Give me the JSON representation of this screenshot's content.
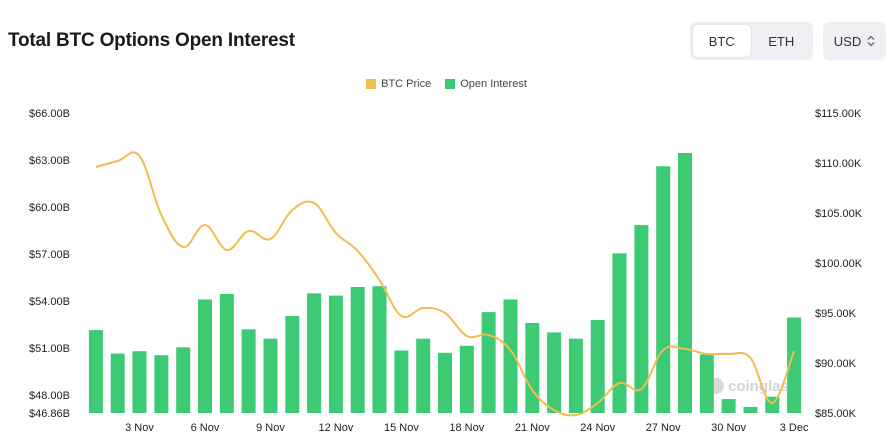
{
  "title": "Total BTC Options Open Interest",
  "asset_toggle": {
    "options": [
      "BTC",
      "ETH"
    ],
    "selected": "BTC"
  },
  "currency_select": {
    "value": "USD"
  },
  "watermark": "coinglass",
  "colors": {
    "btc_price": "#f0bd4f",
    "open_interest": "#3dca74"
  },
  "chart_data": {
    "type": "bar",
    "title": "Total BTC Options Open Interest",
    "legend": {
      "placement": "top-center",
      "entries": [
        "BTC Price",
        "Open Interest"
      ]
    },
    "grid": false,
    "x_ticks": [
      "3 Nov",
      "6 Nov",
      "9 Nov",
      "12 Nov",
      "15 Nov",
      "18 Nov",
      "21 Nov",
      "24 Nov",
      "27 Nov",
      "30 Nov",
      "3 Dec"
    ],
    "y_left": {
      "ticks": [
        "$46.86B",
        "$48.00B",
        "$51.00B",
        "$54.00B",
        "$57.00B",
        "$60.00B",
        "$63.00B",
        "$66.00B"
      ],
      "range": [
        46.86,
        66
      ]
    },
    "y_right": {
      "ticks": [
        "$85.00K",
        "$90.00K",
        "$95.00K",
        "$100.00K",
        "$105.00K",
        "$110.00K",
        "$115.00K"
      ],
      "range": [
        85000,
        115000
      ]
    },
    "categories": [
      "1 Nov",
      "2 Nov",
      "3 Nov",
      "4 Nov",
      "5 Nov",
      "6 Nov",
      "7 Nov",
      "8 Nov",
      "9 Nov",
      "10 Nov",
      "11 Nov",
      "12 Nov",
      "13 Nov",
      "14 Nov",
      "15 Nov",
      "16 Nov",
      "17 Nov",
      "18 Nov",
      "19 Nov",
      "20 Nov",
      "21 Nov",
      "22 Nov",
      "23 Nov",
      "24 Nov",
      "25 Nov",
      "26 Nov",
      "27 Nov",
      "28 Nov",
      "29 Nov",
      "30 Nov",
      "1 Dec",
      "2 Dec",
      "3 Dec"
    ],
    "series": [
      {
        "name": "Open Interest",
        "type": "bar",
        "axis": "left",
        "values": [
          52.15,
          50.65,
          50.8,
          50.55,
          51.05,
          54.1,
          54.45,
          52.2,
          51.6,
          53.05,
          54.5,
          54.35,
          54.9,
          54.95,
          50.85,
          51.6,
          50.7,
          51.15,
          53.3,
          54.1,
          52.6,
          52.0,
          51.6,
          52.8,
          57.05,
          58.85,
          62.6,
          63.45,
          50.6,
          47.75,
          47.25,
          47.9,
          52.95
        ]
      },
      {
        "name": "BTC Price",
        "type": "line",
        "axis": "right",
        "values": [
          109600,
          110200,
          110700,
          104800,
          101600,
          103800,
          101300,
          103200,
          102400,
          105300,
          106000,
          103000,
          101200,
          98300,
          94700,
          95500,
          95000,
          92700,
          92800,
          91300,
          87300,
          85300,
          84800,
          86000,
          88000,
          87400,
          91300,
          91400,
          90900,
          90900,
          90500,
          86000,
          91200
        ]
      }
    ]
  }
}
